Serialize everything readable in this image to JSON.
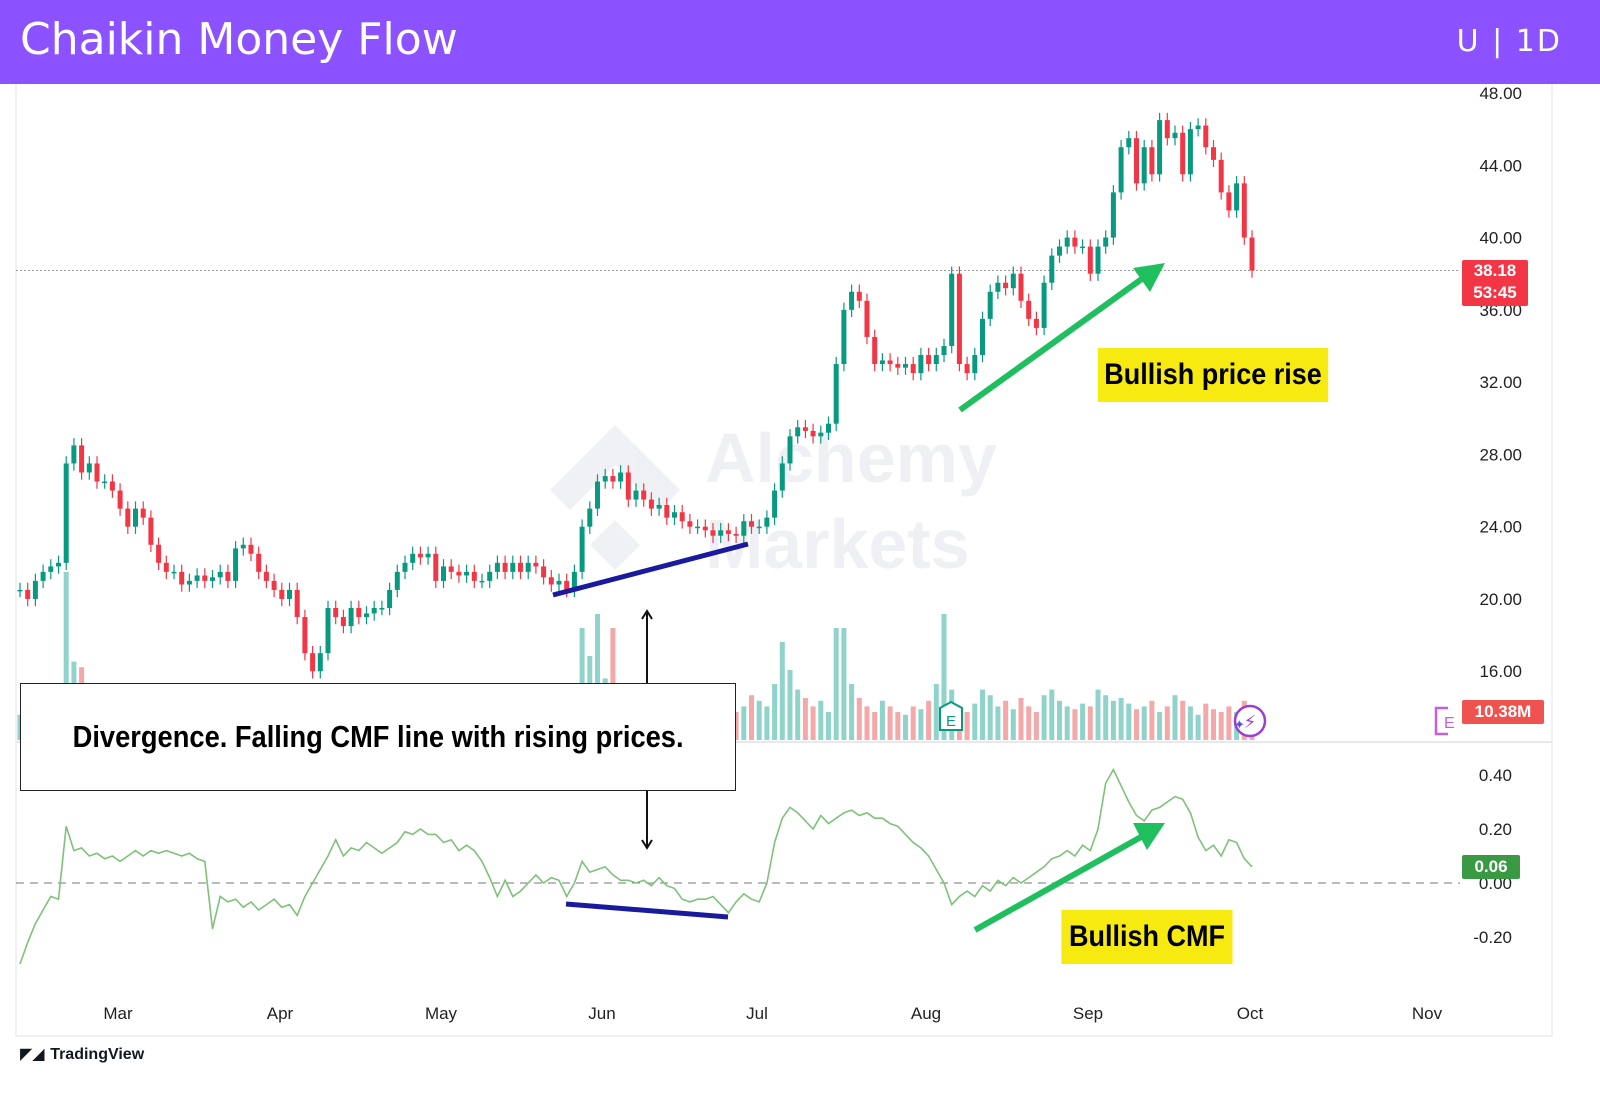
{
  "header": {
    "title": "Chaikin Money Flow",
    "symbol": "U | 1D"
  },
  "annotations": {
    "bullish_price": "Bullish price rise",
    "bullish_cmf": "Bullish CMF",
    "divergence": "Divergence. Falling CMF line with rising prices."
  },
  "watermark": {
    "line1": "Alchemy",
    "line2": "Markets"
  },
  "branding": {
    "tradingview": "TradingView"
  },
  "badges": {
    "last_price": "38.18",
    "countdown": "53:45",
    "volume": "10.38M",
    "cmf": "0.06"
  },
  "colors": {
    "header": "#8c52ff",
    "up": "#089981",
    "down": "#f23645",
    "up_volume": "#8fd3cb",
    "down_volume": "#f5a8a8",
    "cmf_line": "#7ec27a",
    "annotation_yellow": "#f6ea10",
    "arrow_green": "#1fbf5f",
    "divergence_line": "#1a1a9e",
    "last_price_badge": "#f23645",
    "cmf_badge": "#3a9a44"
  },
  "chart_data": [
    {
      "type": "candlestick",
      "title": "",
      "ylim": [
        14,
        48
      ],
      "y_ticks": [
        "48.00",
        "44.00",
        "40.00",
        "36.00",
        "32.00",
        "28.00",
        "24.00",
        "20.00",
        "16.00"
      ],
      "x_ticks": [
        "Mar",
        "Apr",
        "May",
        "Jun",
        "Jul",
        "Aug",
        "Sep",
        "Oct",
        "Nov"
      ],
      "last_price": 38.18,
      "close": [
        20.5,
        20,
        21,
        21.5,
        21.8,
        22,
        27.5,
        28.5,
        27,
        27.5,
        26.5,
        26.5,
        26,
        25,
        24,
        25,
        24.5,
        23,
        22,
        21.5,
        21.5,
        20.8,
        21,
        21.3,
        21,
        21.2,
        21.5,
        21,
        22.8,
        23,
        22.5,
        21.5,
        21,
        20.5,
        20,
        20.5,
        19,
        17,
        16,
        17,
        19.5,
        19,
        18.5,
        19.5,
        19,
        19.2,
        19.5,
        19.5,
        20.5,
        21.5,
        22,
        22.5,
        22.3,
        22.5,
        21,
        21.8,
        21.5,
        21.3,
        21.5,
        21,
        21,
        21.5,
        22,
        21.5,
        22,
        21.5,
        22,
        21.8,
        21.2,
        20.8,
        21,
        20.5,
        21.5,
        24,
        25,
        26.5,
        26.8,
        26.5,
        27,
        25.5,
        26,
        25.5,
        25,
        25.2,
        24.5,
        24.8,
        24.3,
        24,
        24,
        23.8,
        23.5,
        23.8,
        23.6,
        23.5,
        24.3,
        24,
        24,
        24.5,
        26,
        27.5,
        29,
        29.5,
        29.3,
        29,
        29.2,
        29.7,
        33,
        36,
        37,
        36.5,
        34.5,
        33,
        33.2,
        33,
        32.8,
        33,
        32.5,
        33.5,
        33,
        33.5,
        34,
        38,
        33,
        32.5,
        33.5,
        35.5,
        37,
        37.5,
        37.2,
        38,
        36.5,
        35.5,
        35,
        37.5,
        39,
        39.5,
        40,
        39.5,
        39.5,
        38,
        39.5,
        40,
        42.5,
        45,
        45.5,
        43,
        45,
        43.5,
        46.5,
        45.5,
        45.8,
        43.5,
        46,
        46.2,
        45,
        44.3,
        42.5,
        41.5,
        43,
        40,
        38.18
      ]
    },
    {
      "type": "bar",
      "title": "Volume",
      "last_value": "10.38M",
      "values": [
        9,
        7,
        8,
        6,
        7,
        8,
        60,
        28,
        26,
        12,
        10,
        9,
        8,
        10,
        9,
        8,
        11,
        9,
        8,
        10,
        8,
        9,
        7,
        8,
        9,
        8,
        10,
        8,
        9,
        8,
        10,
        9,
        8,
        9,
        10,
        8,
        12,
        14,
        18,
        10,
        9,
        8,
        10,
        9,
        8,
        9,
        8,
        10,
        9,
        8,
        9,
        10,
        8,
        9,
        10,
        9,
        8,
        9,
        8,
        10,
        9,
        8,
        9,
        10,
        9,
        8,
        9,
        10,
        8,
        9,
        10,
        12,
        14,
        40,
        30,
        45,
        22,
        40,
        15,
        12,
        10,
        11,
        9,
        10,
        12,
        11,
        10,
        14,
        12,
        10,
        11,
        12,
        18,
        10,
        12,
        16,
        14,
        12,
        20,
        35,
        25,
        18,
        15,
        12,
        14,
        10,
        40,
        40,
        20,
        15,
        12,
        10,
        14,
        12,
        10,
        9,
        12,
        11,
        14,
        20,
        45,
        18,
        12,
        10,
        13,
        18,
        16,
        12,
        14,
        11,
        15,
        12,
        10,
        16,
        18,
        14,
        12,
        11,
        13,
        12,
        18,
        16,
        14,
        15,
        13,
        11,
        12,
        14,
        10,
        12,
        16,
        14,
        12,
        9,
        13,
        11,
        10,
        12,
        10,
        14,
        10.38
      ]
    },
    {
      "type": "line",
      "title": "Chaikin Money Flow",
      "ylim": [
        -0.32,
        0.5
      ],
      "y_ticks": [
        "0.40",
        "0.20",
        "0.00",
        "-0.20"
      ],
      "zero_line": true,
      "last_value": 0.06,
      "values": [
        -0.3,
        -0.22,
        -0.15,
        -0.1,
        -0.05,
        -0.06,
        0.21,
        0.12,
        0.13,
        0.1,
        0.11,
        0.09,
        0.1,
        0.08,
        0.1,
        0.12,
        0.1,
        0.12,
        0.11,
        0.12,
        0.11,
        0.1,
        0.11,
        0.09,
        0.08,
        -0.17,
        -0.05,
        -0.07,
        -0.06,
        -0.09,
        -0.07,
        -0.1,
        -0.08,
        -0.06,
        -0.09,
        -0.08,
        -0.12,
        -0.05,
        0,
        0.05,
        0.1,
        0.16,
        0.1,
        0.13,
        0.12,
        0.15,
        0.13,
        0.11,
        0.13,
        0.15,
        0.19,
        0.18,
        0.2,
        0.18,
        0.18,
        0.15,
        0.16,
        0.12,
        0.14,
        0.12,
        0.08,
        0.02,
        -0.05,
        0.01,
        -0.05,
        -0.03,
        0,
        0.03,
        0,
        0.02,
        0.01,
        -0.05,
        0,
        0.08,
        0.04,
        0.05,
        0.06,
        0.03,
        0.01,
        0.01,
        0,
        0.01,
        -0.01,
        0.02,
        -0.01,
        -0.02,
        -0.06,
        -0.07,
        -0.06,
        -0.06,
        -0.05,
        -0.08,
        -0.11,
        -0.07,
        -0.04,
        -0.06,
        -0.07,
        0,
        0.15,
        0.24,
        0.28,
        0.26,
        0.23,
        0.2,
        0.25,
        0.22,
        0.24,
        0.26,
        0.27,
        0.25,
        0.26,
        0.24,
        0.24,
        0.22,
        0.21,
        0.18,
        0.15,
        0.13,
        0.1,
        0.05,
        0,
        -0.08,
        -0.05,
        -0.03,
        -0.05,
        -0.01,
        -0.03,
        0.01,
        -0.01,
        0.02,
        0,
        0.02,
        0.04,
        0.06,
        0.09,
        0.1,
        0.12,
        0.1,
        0.14,
        0.12,
        0.2,
        0.37,
        0.42,
        0.36,
        0.3,
        0.25,
        0.23,
        0.27,
        0.28,
        0.3,
        0.32,
        0.31,
        0.26,
        0.17,
        0.12,
        0.14,
        0.1,
        0.16,
        0.15,
        0.09,
        0.06
      ]
    }
  ]
}
